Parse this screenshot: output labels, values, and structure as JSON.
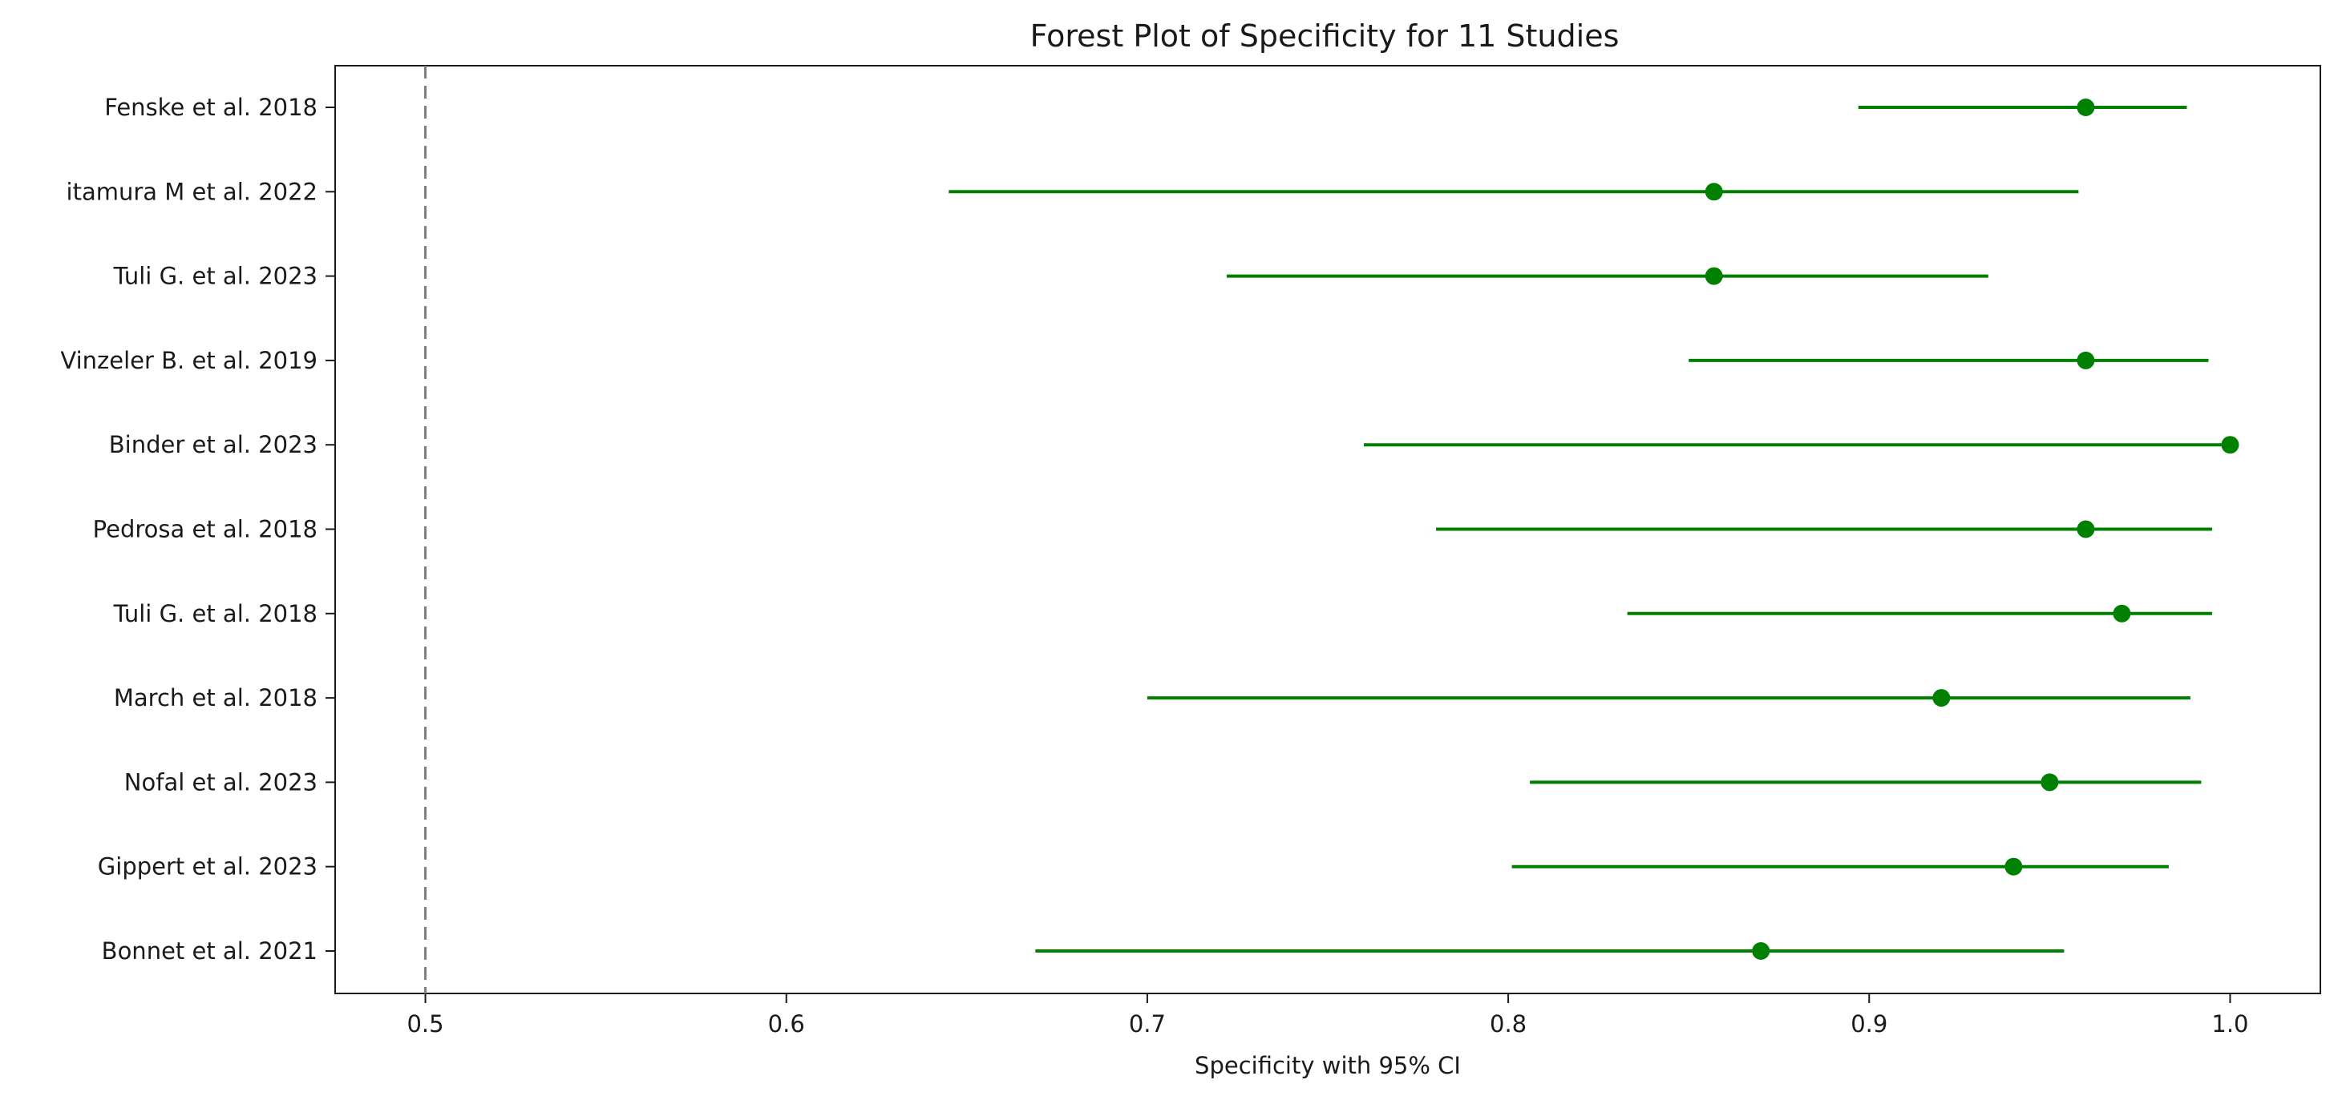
{
  "chart_data": {
    "type": "scatter",
    "subtype": "forest",
    "title": "Forest Plot of Specificity for 11 Studies",
    "xlabel": "Specificity with 95% CI",
    "ylabel": "",
    "xlim": [
      0.475,
      1.025
    ],
    "xticks": [
      0.5,
      0.6,
      0.7,
      0.8,
      0.9,
      1.0
    ],
    "xtick_labels": [
      "0.5",
      "0.6",
      "0.7",
      "0.8",
      "0.9",
      "1.0"
    ],
    "reference_line": 0.5,
    "grid": false,
    "legend": "none",
    "colors": {
      "series": "#008000",
      "reference": "#7f7f7f",
      "axes": "#1a1a1a"
    },
    "studies": [
      {
        "label": "Fenske et al. 2018",
        "estimate": 0.96,
        "lower": 0.897,
        "upper": 0.988
      },
      {
        "label": "itamura M et al. 2022",
        "estimate": 0.857,
        "lower": 0.645,
        "upper": 0.958
      },
      {
        "label": "Tuli G. et al. 2023",
        "estimate": 0.857,
        "lower": 0.722,
        "upper": 0.933
      },
      {
        "label": "Vinzeler B. et al. 2019",
        "estimate": 0.96,
        "lower": 0.85,
        "upper": 0.994
      },
      {
        "label": "Binder et al. 2023",
        "estimate": 1.0,
        "lower": 0.76,
        "upper": 1.0
      },
      {
        "label": "Pedrosa et al. 2018",
        "estimate": 0.96,
        "lower": 0.78,
        "upper": 0.995
      },
      {
        "label": "Tuli G. et al. 2018",
        "estimate": 0.97,
        "lower": 0.833,
        "upper": 0.995
      },
      {
        "label": "March et al. 2018",
        "estimate": 0.92,
        "lower": 0.7,
        "upper": 0.989
      },
      {
        "label": "Nofal et al. 2023",
        "estimate": 0.95,
        "lower": 0.806,
        "upper": 0.992
      },
      {
        "label": "Gippert et al. 2023",
        "estimate": 0.94,
        "lower": 0.801,
        "upper": 0.983
      },
      {
        "label": "Bonnet et al. 2021",
        "estimate": 0.87,
        "lower": 0.669,
        "upper": 0.954
      }
    ]
  }
}
